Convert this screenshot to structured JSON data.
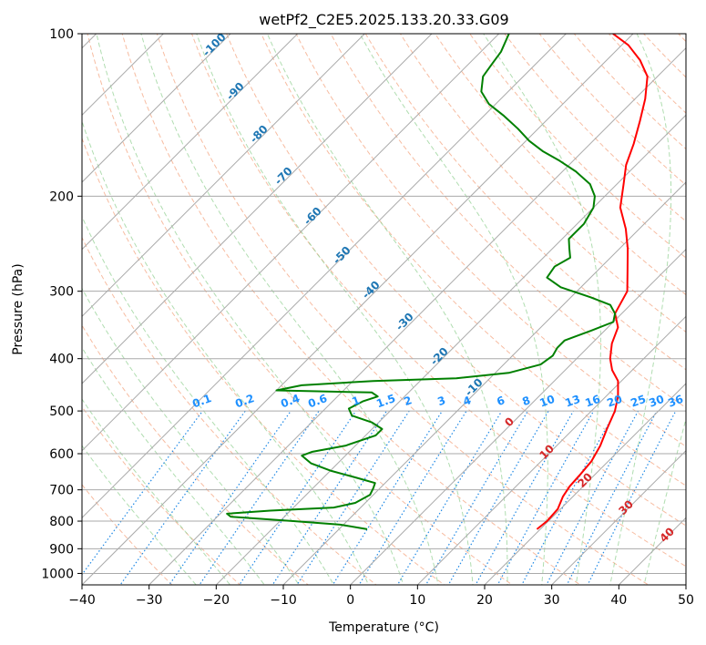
{
  "chart_data": {
    "type": "line",
    "title": "wetPf2_C2E5.2025.133.20.33.G09",
    "xlabel": "Temperature (°C)",
    "ylabel": "Pressure (hPa)",
    "xlim": [
      -40,
      50
    ],
    "ylim": [
      1050,
      100
    ],
    "y_scale": "log",
    "x_ticks": [
      -40,
      -30,
      -20,
      -10,
      0,
      10,
      20,
      30,
      40,
      50
    ],
    "x_tick_labels": [
      "−40",
      "−30",
      "−20",
      "−10",
      "0",
      "10",
      "20",
      "30",
      "40",
      "50"
    ],
    "y_ticks": [
      100,
      200,
      300,
      400,
      500,
      600,
      700,
      800,
      900,
      1000
    ],
    "y_tick_labels": [
      "100",
      "200",
      "300",
      "400",
      "500",
      "600",
      "700",
      "800",
      "900",
      "1000"
    ],
    "grid": true,
    "skew": 45,
    "colors": {
      "temperature": "#ff0000",
      "dewpoint": "#008000",
      "isotherm": "#aaaaaa",
      "dry_adiabat": "#f4a582",
      "moist_adiabat": "#8fcf8f",
      "mixing_ratio": "#1e88e5",
      "dry_label": "#1f77b4",
      "moist_label": "#d62728"
    },
    "series": [
      {
        "key": "temperature",
        "points": [
          [
            19.5,
            828
          ],
          [
            19.8,
            800
          ],
          [
            19.6,
            760
          ],
          [
            18.5,
            720
          ],
          [
            18.0,
            690
          ],
          [
            17.8,
            655
          ],
          [
            17.5,
            620
          ],
          [
            16.5,
            580
          ],
          [
            15.0,
            540
          ],
          [
            13.5,
            500
          ],
          [
            11.8,
            470
          ],
          [
            9.5,
            440
          ],
          [
            7.0,
            420
          ],
          [
            5.0,
            400
          ],
          [
            3.0,
            375
          ],
          [
            1.5,
            350
          ],
          [
            -1.0,
            330
          ],
          [
            -2.5,
            300
          ],
          [
            -5.5,
            275
          ],
          [
            -8.8,
            250
          ],
          [
            -12.0,
            230
          ],
          [
            -16.0,
            210
          ],
          [
            -19.0,
            190
          ],
          [
            -21.5,
            175
          ],
          [
            -23.5,
            160
          ],
          [
            -26.0,
            145
          ],
          [
            -28.5,
            132
          ],
          [
            -31.5,
            120
          ],
          [
            -35.0,
            112
          ],
          [
            -39.0,
            105
          ],
          [
            -43.0,
            100
          ]
        ]
      },
      {
        "key": "dewpoint",
        "points": [
          [
            -5.8,
            828
          ],
          [
            -10.5,
            812
          ],
          [
            -18.0,
            800
          ],
          [
            -28.0,
            785
          ],
          [
            -29.0,
            775
          ],
          [
            -23.0,
            765
          ],
          [
            -14.0,
            755
          ],
          [
            -11.5,
            740
          ],
          [
            -10.5,
            715
          ],
          [
            -11.0,
            695
          ],
          [
            -11.5,
            680
          ],
          [
            -15.0,
            665
          ],
          [
            -20.0,
            645
          ],
          [
            -24.0,
            625
          ],
          [
            -26.5,
            605
          ],
          [
            -25.5,
            595
          ],
          [
            -21.5,
            580
          ],
          [
            -18.5,
            555
          ],
          [
            -18.5,
            540
          ],
          [
            -21.0,
            525
          ],
          [
            -25.0,
            510
          ],
          [
            -26.5,
            495
          ],
          [
            -25.5,
            480
          ],
          [
            -24.0,
            470
          ],
          [
            -25.5,
            462
          ],
          [
            -33.0,
            460
          ],
          [
            -40.0,
            458
          ],
          [
            -37.0,
            448
          ],
          [
            -27.0,
            440
          ],
          [
            -15.0,
            435
          ],
          [
            -8.0,
            425
          ],
          [
            -4.5,
            410
          ],
          [
            -4.0,
            395
          ],
          [
            -4.5,
            382
          ],
          [
            -4.5,
            370
          ],
          [
            -2.0,
            355
          ],
          [
            0.0,
            342
          ],
          [
            -1.0,
            330
          ],
          [
            -3.0,
            318
          ],
          [
            -7.0,
            308
          ],
          [
            -13.0,
            295
          ],
          [
            -16.5,
            283
          ],
          [
            -17.0,
            270
          ],
          [
            -16.0,
            260
          ],
          [
            -17.5,
            250
          ],
          [
            -19.0,
            240
          ],
          [
            -19.0,
            225
          ],
          [
            -20.0,
            210
          ],
          [
            -21.5,
            200
          ],
          [
            -24.0,
            190
          ],
          [
            -28.0,
            180
          ],
          [
            -32.0,
            172
          ],
          [
            -36.0,
            165
          ],
          [
            -39.5,
            158
          ],
          [
            -43.0,
            150
          ],
          [
            -47.0,
            142
          ],
          [
            -51.0,
            135
          ],
          [
            -54.0,
            128
          ],
          [
            -56.0,
            120
          ],
          [
            -56.5,
            114
          ],
          [
            -57.0,
            108
          ],
          [
            -58.5,
            100
          ]
        ]
      }
    ],
    "dry_adiabat_labels": [
      "-100",
      "-90",
      "-80",
      "-70",
      "-60",
      "-50",
      "-40",
      "-30",
      "-20",
      "-10"
    ],
    "mixing_ratio_labels": [
      "0.1",
      "0.2",
      "0.4",
      "0.6",
      "1",
      "1.5",
      "2",
      "3",
      "4",
      "6",
      "8",
      "10",
      "13",
      "16",
      "20",
      "25",
      "30",
      "36"
    ],
    "moist_adiabat_labels": [
      "0",
      "10",
      "20",
      "30",
      "40"
    ]
  }
}
